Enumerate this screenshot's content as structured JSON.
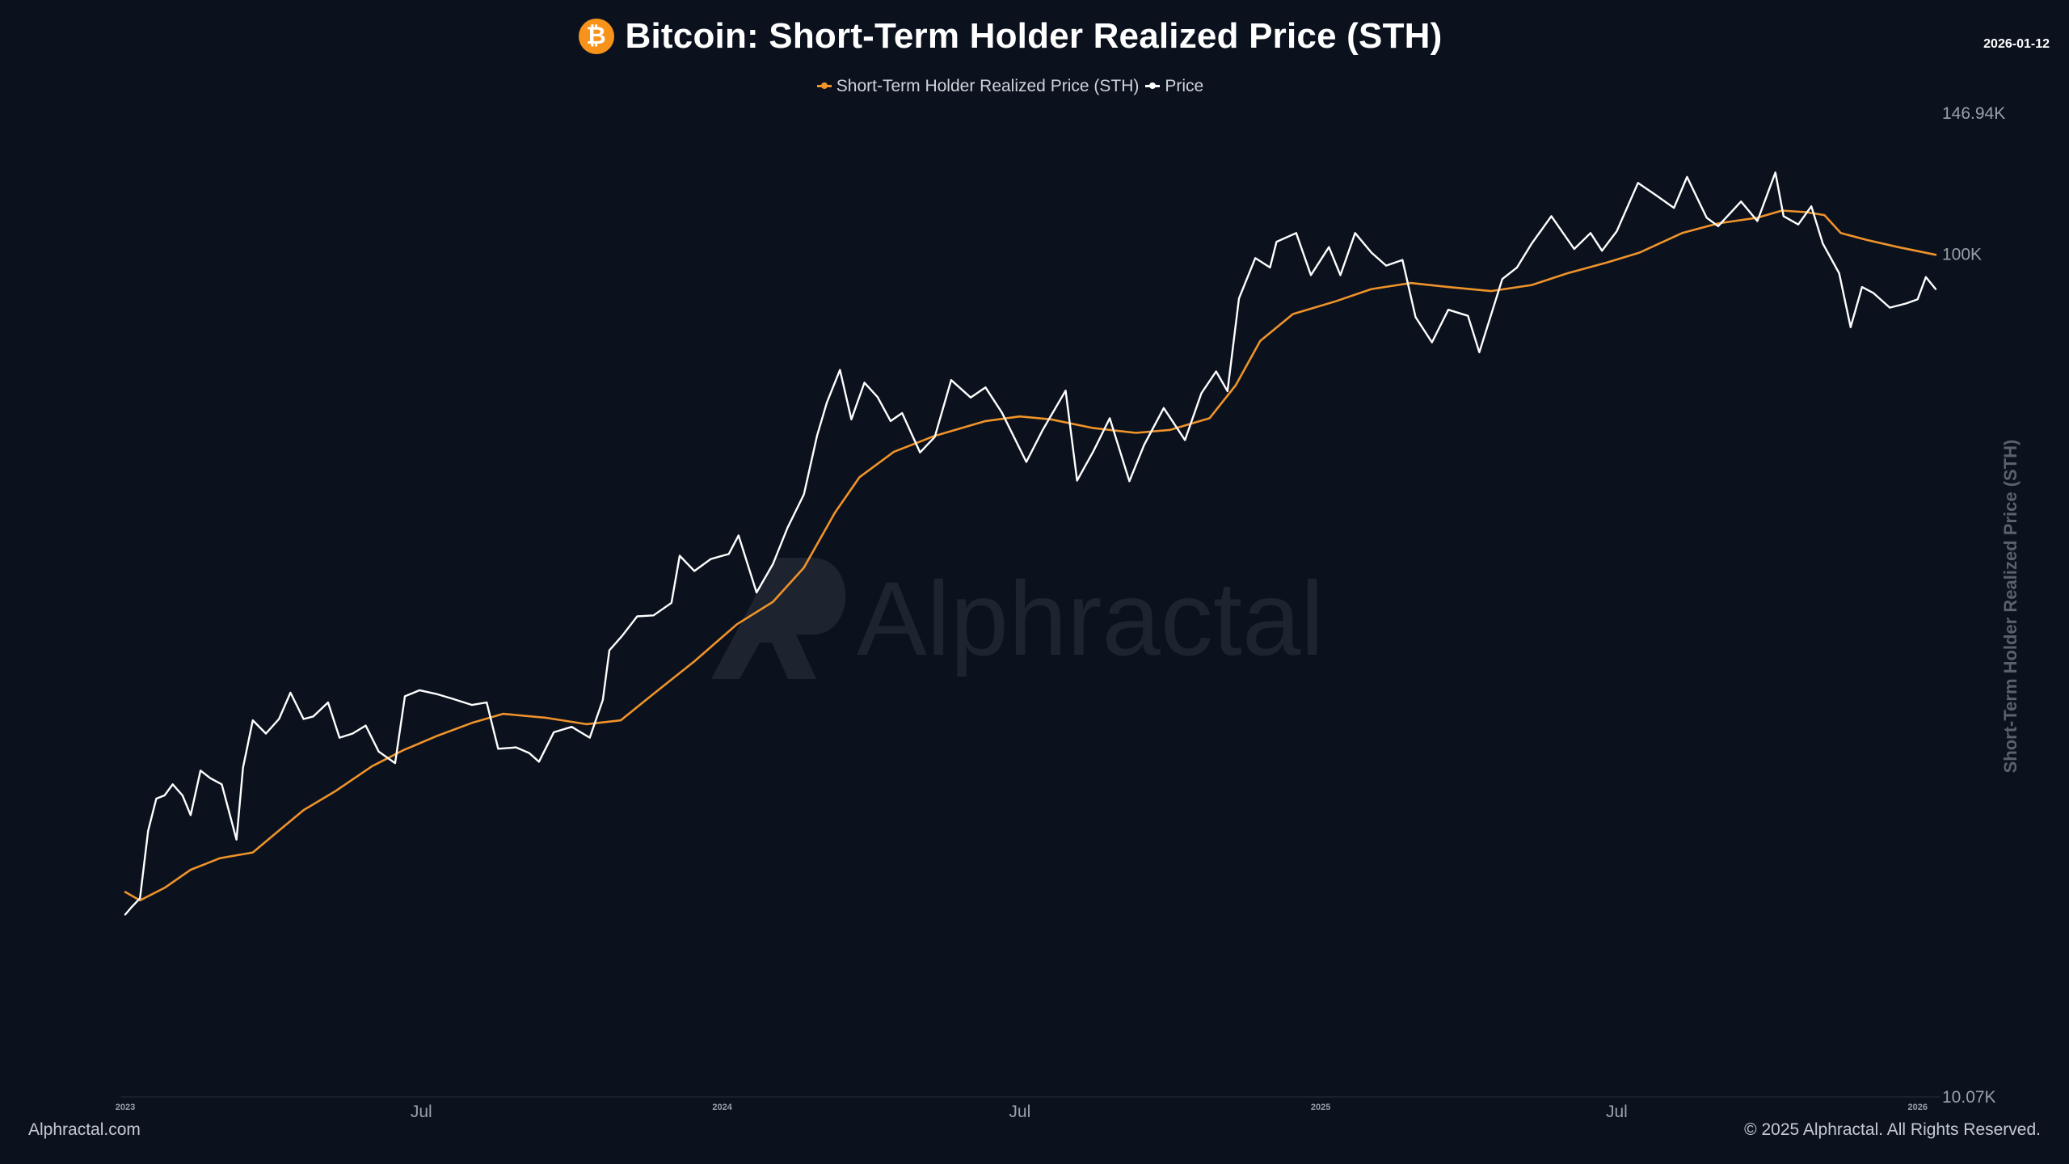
{
  "header": {
    "title": "Bitcoin: Short-Term Holder Realized Price (STH)",
    "logo_glyph": "₿",
    "date": "2026-01-12"
  },
  "legend": {
    "sth_label": "Short-Term Holder Realized Price (STH)",
    "price_label": "Price"
  },
  "watermark": "Alphractal",
  "footer": {
    "site": "Alphractal.com",
    "copyright": "© 2025 Alphractal. All Rights Reserved."
  },
  "colors": {
    "background": "#0b121e",
    "sth": "#f0932a",
    "price": "#ffffff",
    "axis_text": "#9aa0a8",
    "axis_title": "#5b616b",
    "watermark": "#1d242f"
  },
  "chart_data": {
    "type": "line",
    "title": "Bitcoin: Short-Term Holder Realized Price (STH)",
    "ylabel": "Short-Term Holder Realized Price (STH)",
    "y_scale": "log",
    "ylim": [
      10070,
      146940
    ],
    "y_ticks": [
      {
        "value": 146940,
        "label": "146.94K"
      },
      {
        "value": 100000,
        "label": "100K"
      },
      {
        "value": 10070,
        "label": "10.07K"
      }
    ],
    "xlim": [
      "2023-01-01",
      "2026-01-12"
    ],
    "x_ticks": [
      {
        "date": "2023-01-01",
        "label": "2023",
        "major": false
      },
      {
        "date": "2023-07-01",
        "label": "Jul",
        "major": true
      },
      {
        "date": "2024-01-01",
        "label": "2024",
        "major": false
      },
      {
        "date": "2024-07-01",
        "label": "Jul",
        "major": true
      },
      {
        "date": "2025-01-01",
        "label": "2025",
        "major": false
      },
      {
        "date": "2025-07-01",
        "label": "Jul",
        "major": true
      },
      {
        "date": "2026-01-01",
        "label": "2026",
        "major": false
      }
    ],
    "grid": false,
    "legend_position": "top-center",
    "series": [
      {
        "name": "Short-Term Holder Realized Price (STH)",
        "color": "#f0932a",
        "points": [
          [
            "2023-01-01",
            17600
          ],
          [
            "2023-01-10",
            17200
          ],
          [
            "2023-01-25",
            17800
          ],
          [
            "2023-02-10",
            18700
          ],
          [
            "2023-02-28",
            19300
          ],
          [
            "2023-03-20",
            19600
          ],
          [
            "2023-04-01",
            20500
          ],
          [
            "2023-04-20",
            22000
          ],
          [
            "2023-05-10",
            23200
          ],
          [
            "2023-06-01",
            24800
          ],
          [
            "2023-06-20",
            25900
          ],
          [
            "2023-07-10",
            26900
          ],
          [
            "2023-08-01",
            27900
          ],
          [
            "2023-08-20",
            28600
          ],
          [
            "2023-09-15",
            28300
          ],
          [
            "2023-10-10",
            27800
          ],
          [
            "2023-10-31",
            28100
          ],
          [
            "2023-11-20",
            30200
          ],
          [
            "2023-12-15",
            33000
          ],
          [
            "2024-01-10",
            36500
          ],
          [
            "2024-02-01",
            38800
          ],
          [
            "2024-02-20",
            42600
          ],
          [
            "2024-03-10",
            49500
          ],
          [
            "2024-03-25",
            54500
          ],
          [
            "2024-04-15",
            58400
          ],
          [
            "2024-05-10",
            61000
          ],
          [
            "2024-06-10",
            63500
          ],
          [
            "2024-07-01",
            64300
          ],
          [
            "2024-07-20",
            63800
          ],
          [
            "2024-08-15",
            62300
          ],
          [
            "2024-09-10",
            61500
          ],
          [
            "2024-10-01",
            62000
          ],
          [
            "2024-10-25",
            64000
          ],
          [
            "2024-11-10",
            70000
          ],
          [
            "2024-11-25",
            79000
          ],
          [
            "2024-12-15",
            85000
          ],
          [
            "2025-01-10",
            88000
          ],
          [
            "2025-02-01",
            91000
          ],
          [
            "2025-02-25",
            92500
          ],
          [
            "2025-03-20",
            91500
          ],
          [
            "2025-04-15",
            90500
          ],
          [
            "2025-05-10",
            92000
          ],
          [
            "2025-06-01",
            95000
          ],
          [
            "2025-06-25",
            97800
          ],
          [
            "2025-07-15",
            100500
          ],
          [
            "2025-08-10",
            106000
          ],
          [
            "2025-09-01",
            108800
          ],
          [
            "2025-09-25",
            110500
          ],
          [
            "2025-10-10",
            112700
          ],
          [
            "2025-10-25",
            112200
          ],
          [
            "2025-11-05",
            111300
          ],
          [
            "2025-11-15",
            106000
          ],
          [
            "2025-12-01",
            104000
          ],
          [
            "2025-12-20",
            102000
          ],
          [
            "2026-01-12",
            99900
          ]
        ]
      },
      {
        "name": "Price",
        "color": "#ffffff",
        "points": [
          [
            "2023-01-01",
            16550
          ],
          [
            "2023-01-05",
            16900
          ],
          [
            "2023-01-10",
            17300
          ],
          [
            "2023-01-15",
            20800
          ],
          [
            "2023-01-20",
            22700
          ],
          [
            "2023-01-25",
            22900
          ],
          [
            "2023-01-30",
            23600
          ],
          [
            "2023-02-05",
            22900
          ],
          [
            "2023-02-10",
            21700
          ],
          [
            "2023-02-16",
            24500
          ],
          [
            "2023-02-22",
            24000
          ],
          [
            "2023-03-01",
            23600
          ],
          [
            "2023-03-10",
            20300
          ],
          [
            "2023-03-14",
            24700
          ],
          [
            "2023-03-20",
            28100
          ],
          [
            "2023-03-28",
            27100
          ],
          [
            "2023-04-05",
            28200
          ],
          [
            "2023-04-12",
            30300
          ],
          [
            "2023-04-20",
            28200
          ],
          [
            "2023-04-26",
            28400
          ],
          [
            "2023-05-05",
            29500
          ],
          [
            "2023-05-12",
            26800
          ],
          [
            "2023-05-20",
            27100
          ],
          [
            "2023-05-28",
            27700
          ],
          [
            "2023-06-05",
            25800
          ],
          [
            "2023-06-15",
            25000
          ],
          [
            "2023-06-21",
            30000
          ],
          [
            "2023-06-30",
            30500
          ],
          [
            "2023-07-10",
            30200
          ],
          [
            "2023-07-20",
            29800
          ],
          [
            "2023-08-01",
            29300
          ],
          [
            "2023-08-10",
            29500
          ],
          [
            "2023-08-17",
            26000
          ],
          [
            "2023-08-28",
            26100
          ],
          [
            "2023-09-05",
            25700
          ],
          [
            "2023-09-11",
            25100
          ],
          [
            "2023-09-20",
            27200
          ],
          [
            "2023-10-01",
            27600
          ],
          [
            "2023-10-12",
            26800
          ],
          [
            "2023-10-20",
            29700
          ],
          [
            "2023-10-24",
            34000
          ],
          [
            "2023-11-01",
            35400
          ],
          [
            "2023-11-10",
            37300
          ],
          [
            "2023-11-20",
            37400
          ],
          [
            "2023-12-01",
            38700
          ],
          [
            "2023-12-06",
            44000
          ],
          [
            "2023-12-15",
            42200
          ],
          [
            "2023-12-25",
            43600
          ],
          [
            "2024-01-05",
            44200
          ],
          [
            "2024-01-11",
            46500
          ],
          [
            "2024-01-22",
            39800
          ],
          [
            "2024-02-01",
            43000
          ],
          [
            "2024-02-10",
            47500
          ],
          [
            "2024-02-20",
            52000
          ],
          [
            "2024-02-28",
            61000
          ],
          [
            "2024-03-05",
            66800
          ],
          [
            "2024-03-13",
            73000
          ],
          [
            "2024-03-20",
            63800
          ],
          [
            "2024-03-28",
            70500
          ],
          [
            "2024-04-05",
            67800
          ],
          [
            "2024-04-13",
            63500
          ],
          [
            "2024-04-20",
            64900
          ],
          [
            "2024-05-01",
            58300
          ],
          [
            "2024-05-10",
            60800
          ],
          [
            "2024-05-20",
            71000
          ],
          [
            "2024-06-01",
            67700
          ],
          [
            "2024-06-10",
            69600
          ],
          [
            "2024-06-20",
            65000
          ],
          [
            "2024-07-05",
            56800
          ],
          [
            "2024-07-15",
            62000
          ],
          [
            "2024-07-29",
            69000
          ],
          [
            "2024-08-05",
            54000
          ],
          [
            "2024-08-15",
            58500
          ],
          [
            "2024-08-25",
            64000
          ],
          [
            "2024-09-06",
            53900
          ],
          [
            "2024-09-15",
            59500
          ],
          [
            "2024-09-27",
            65800
          ],
          [
            "2024-10-10",
            60300
          ],
          [
            "2024-10-20",
            68500
          ],
          [
            "2024-10-29",
            72700
          ],
          [
            "2024-11-05",
            68900
          ],
          [
            "2024-11-12",
            88700
          ],
          [
            "2024-11-22",
            99000
          ],
          [
            "2024-12-01",
            96500
          ],
          [
            "2024-12-05",
            103500
          ],
          [
            "2024-12-17",
            106000
          ],
          [
            "2024-12-26",
            94500
          ],
          [
            "2025-01-06",
            102000
          ],
          [
            "2025-01-13",
            94500
          ],
          [
            "2025-01-22",
            106000
          ],
          [
            "2025-02-01",
            100500
          ],
          [
            "2025-02-10",
            97000
          ],
          [
            "2025-02-20",
            98500
          ],
          [
            "2025-02-28",
            84300
          ],
          [
            "2025-03-10",
            78700
          ],
          [
            "2025-03-20",
            86000
          ],
          [
            "2025-04-01",
            84600
          ],
          [
            "2025-04-08",
            76600
          ],
          [
            "2025-04-22",
            93500
          ],
          [
            "2025-05-01",
            96500
          ],
          [
            "2025-05-10",
            103000
          ],
          [
            "2025-05-22",
            111000
          ],
          [
            "2025-06-05",
            101500
          ],
          [
            "2025-06-15",
            106000
          ],
          [
            "2025-06-22",
            101000
          ],
          [
            "2025-07-01",
            106500
          ],
          [
            "2025-07-14",
            121500
          ],
          [
            "2025-07-25",
            117500
          ],
          [
            "2025-08-05",
            113500
          ],
          [
            "2025-08-13",
            123500
          ],
          [
            "2025-08-25",
            110500
          ],
          [
            "2025-09-01",
            108000
          ],
          [
            "2025-09-15",
            115500
          ],
          [
            "2025-09-25",
            109500
          ],
          [
            "2025-10-06",
            125000
          ],
          [
            "2025-10-11",
            111000
          ],
          [
            "2025-10-20",
            108500
          ],
          [
            "2025-10-28",
            114000
          ],
          [
            "2025-11-04",
            103000
          ],
          [
            "2025-11-14",
            95000
          ],
          [
            "2025-11-21",
            82000
          ],
          [
            "2025-11-28",
            91500
          ],
          [
            "2025-12-05",
            90000
          ],
          [
            "2025-12-15",
            86500
          ],
          [
            "2025-12-25",
            87500
          ],
          [
            "2026-01-01",
            88500
          ],
          [
            "2026-01-06",
            94000
          ],
          [
            "2026-01-12",
            91000
          ]
        ]
      }
    ]
  }
}
